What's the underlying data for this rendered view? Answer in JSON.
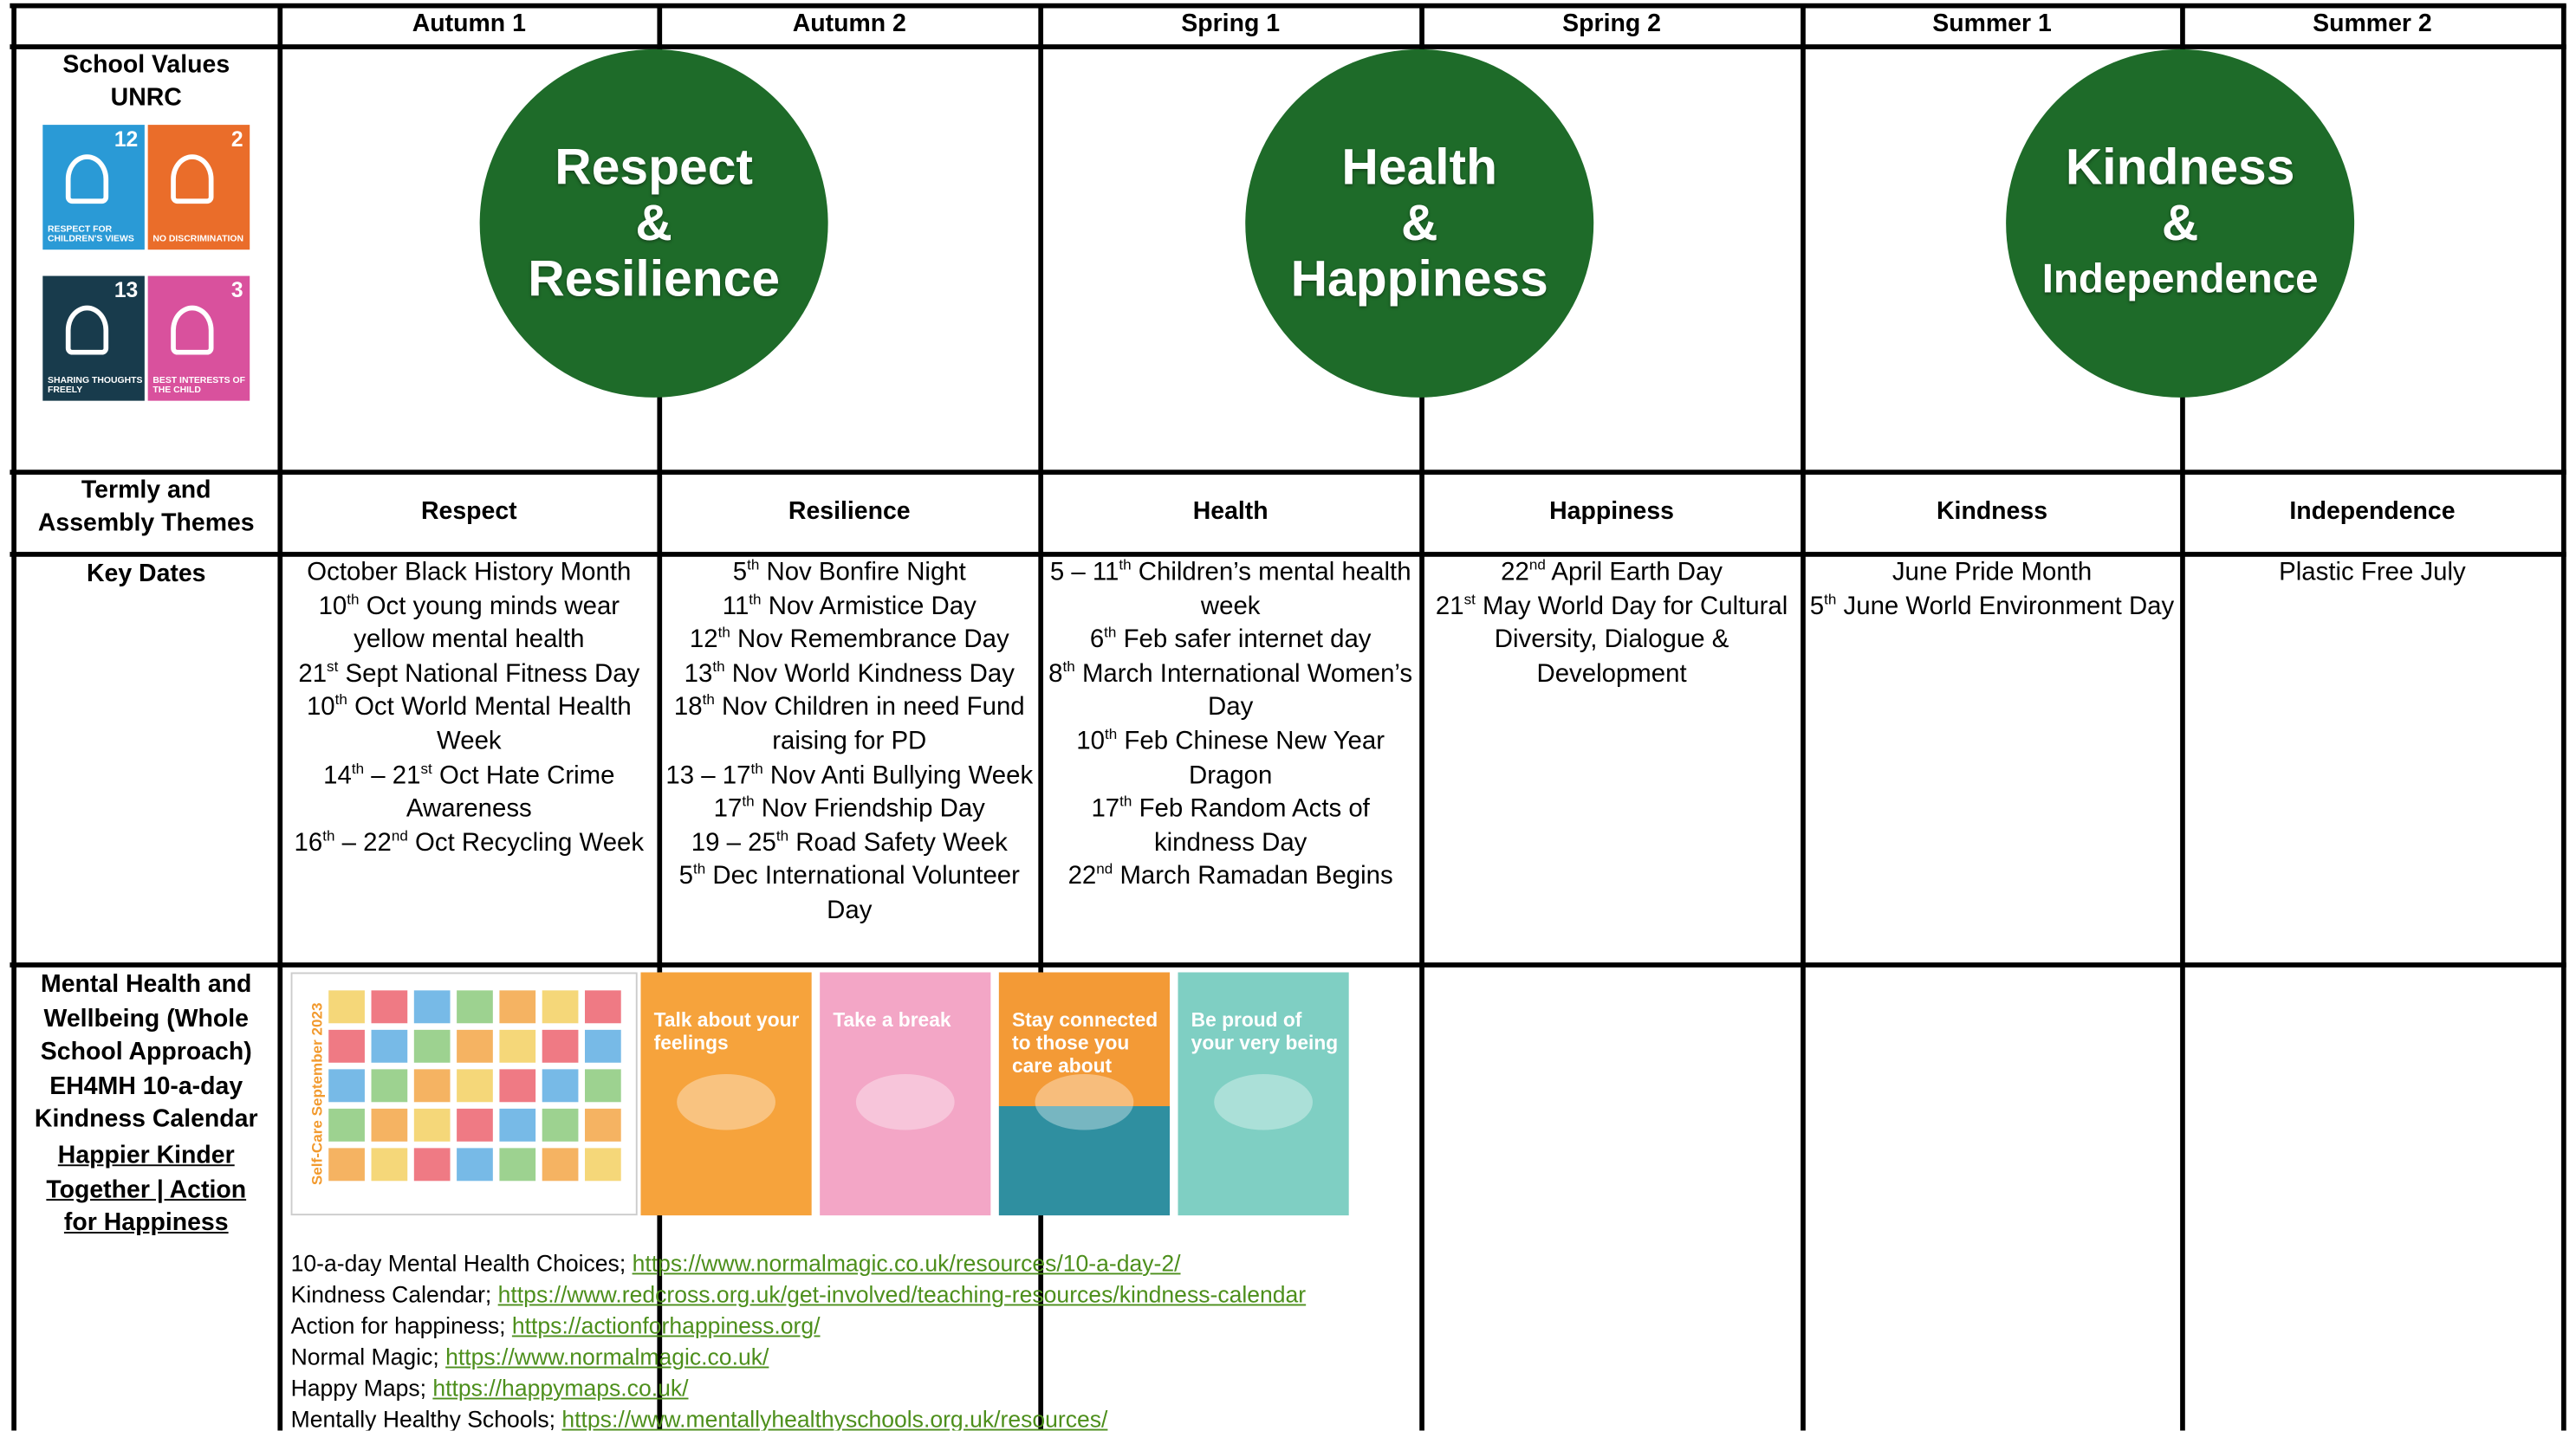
{
  "table": {
    "terms": [
      "Autumn 1",
      "Autumn 2",
      "Spring 1",
      "Spring 2",
      "Summer 1",
      "Summer 2"
    ],
    "values_label": [
      "School Values",
      "UNRC"
    ],
    "unrc": [
      {
        "number": 12,
        "label": "RESPECT FOR CHILDREN'S VIEWS",
        "color": "#2a9ad6"
      },
      {
        "number": 2,
        "label": "NO DISCRIMINATION",
        "color": "#ea6d2a"
      },
      {
        "number": 13,
        "label": "SHARING THOUGHTS FREELY",
        "color": "#183b4c"
      },
      {
        "number": 3,
        "label": "BEST INTERESTS OF THE CHILD",
        "color": "#d9519d"
      }
    ],
    "values": [
      {
        "lines": [
          "Respect",
          "&",
          "Resilience"
        ]
      },
      {
        "lines": [
          "Health",
          "&",
          "Happiness"
        ]
      },
      {
        "lines": [
          "Kindness",
          "&",
          "Independence"
        ]
      }
    ],
    "themes_label": [
      "Termly and",
      "Assembly Themes"
    ],
    "themes": [
      "Respect",
      "Resilience",
      "Health",
      "Happiness",
      "Kindness",
      "Independence"
    ],
    "key_dates_label": "Key Dates",
    "key_dates": [
      [
        "October Black History Month",
        "10th Oct young minds wear yellow mental health",
        "21st Sept National Fitness Day",
        "10th Oct World Mental Health Week",
        "14th – 21st Oct Hate Crime Awareness",
        "16th – 22nd Oct Recycling Week"
      ],
      [
        "5th Nov Bonfire Night",
        "11th Nov Armistice Day",
        "12th Nov Remembrance Day",
        "13th Nov World Kindness Day",
        "18th Nov Children in need Fund raising for PD",
        "13 – 17th Nov Anti Bullying Week",
        "17th Nov Friendship Day",
        "19 – 25th Road Safety Week",
        "5th Dec International Volunteer Day"
      ],
      [
        "5 – 11th Children’s mental health week",
        "6th Feb safer internet day",
        "8th March International Women’s Day",
        "10th Feb Chinese New Year Dragon",
        "17th Feb Random Acts of kindness Day",
        "22nd March Ramadan Begins"
      ],
      [
        "22nd April Earth Day",
        "21st May World Day for Cultural Diversity, Dialogue & Development"
      ],
      [
        "June Pride Month",
        "5th June World Environment Day"
      ],
      [
        "Plastic Free July"
      ]
    ],
    "wellbeing_label": [
      "Mental Health and",
      "Wellbeing (Whole",
      "School Approach)",
      "EH4MH 10-a-day",
      "Kindness Calendar"
    ],
    "wellbeing_link": "Happier Kinder Together | Action for Happiness",
    "calendar_title": "Self-Care September 2023",
    "posters": [
      "Talk about your feelings",
      "Take a break",
      "Stay connected to those you care about",
      "Be proud of your very being"
    ],
    "links": [
      {
        "label": "10-a-day Mental Health Choices;",
        "url": "https://www.normalmagic.co.uk/resources/10-a-day-2/"
      },
      {
        "label": "Kindness Calendar;",
        "url": "https://www.redcross.org.uk/get-involved/teaching-resources/kindness-calendar"
      },
      {
        "label": "Action for happiness;",
        "url": "https://actionforhappiness.org/"
      },
      {
        "label": "Normal Magic;",
        "url": "https://www.normalmagic.co.uk/"
      },
      {
        "label": "Happy Maps;",
        "url": "https://happymaps.co.uk/"
      },
      {
        "label": "Mentally Healthy Schools;",
        "url": "https://www.mentallyhealthyschools.org.uk/resources/"
      }
    ]
  }
}
